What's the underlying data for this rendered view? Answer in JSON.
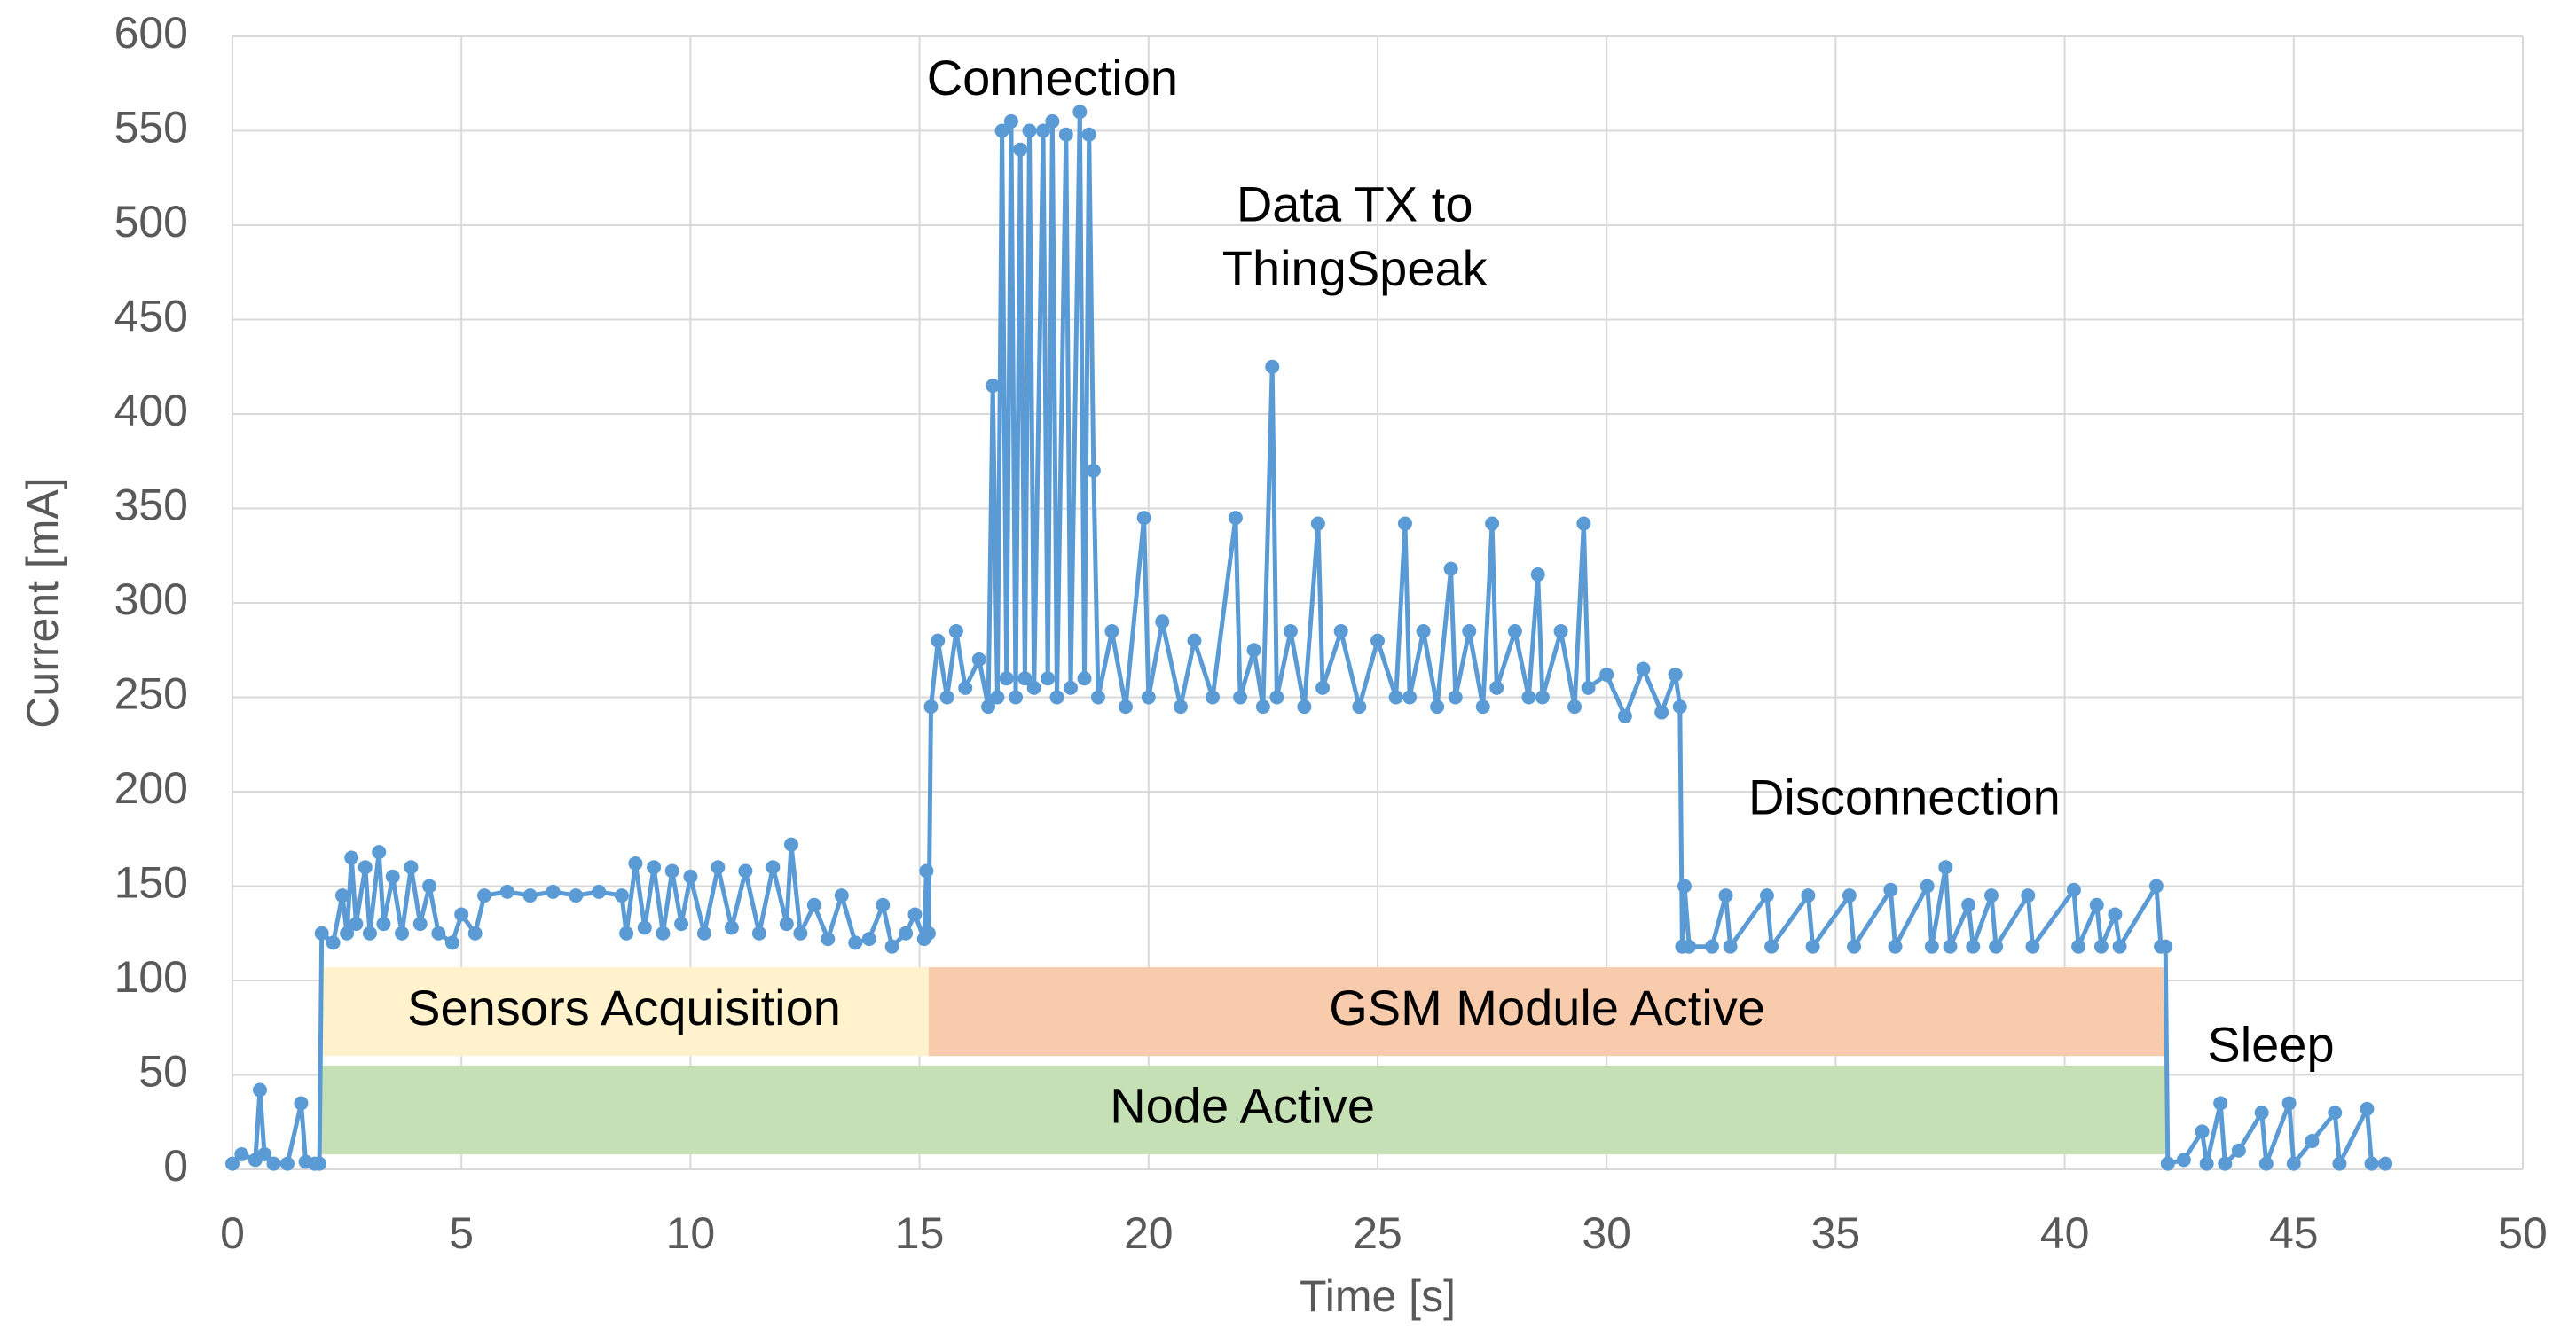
{
  "chart_data": {
    "type": "line",
    "xlabel": "Time [s]",
    "ylabel": "Current [mA]",
    "xlim": [
      0,
      50
    ],
    "xticks": [
      0,
      5,
      10,
      15,
      20,
      25,
      30,
      35,
      40,
      45,
      50
    ],
    "ylim": [
      0,
      600
    ],
    "yticks": [
      0,
      50,
      100,
      150,
      200,
      250,
      300,
      350,
      400,
      450,
      500,
      550,
      600
    ],
    "grid": true,
    "color": "#5b9bd5",
    "x": [
      0,
      0.2,
      0.5,
      0.6,
      0.7,
      0.9,
      1.2,
      1.5,
      1.6,
      1.8,
      1.9,
      1.95,
      2.2,
      2.4,
      2.5,
      2.6,
      2.7,
      2.9,
      3.0,
      3.2,
      3.3,
      3.5,
      3.7,
      3.9,
      4.1,
      4.3,
      4.5,
      4.8,
      5.0,
      5.3,
      5.5,
      6.0,
      6.5,
      7.0,
      7.5,
      8.0,
      8.5,
      8.6,
      8.8,
      9.0,
      9.2,
      9.4,
      9.6,
      9.8,
      10.0,
      10.3,
      10.6,
      10.9,
      11.2,
      11.5,
      11.8,
      12.1,
      12.2,
      12.4,
      12.7,
      13.0,
      13.3,
      13.6,
      13.9,
      14.2,
      14.4,
      14.7,
      14.9,
      15.1,
      15.15,
      15.2,
      15.25,
      15.4,
      15.6,
      15.8,
      16.0,
      16.3,
      16.5,
      16.6,
      16.7,
      16.8,
      16.9,
      17.0,
      17.1,
      17.2,
      17.3,
      17.4,
      17.5,
      17.7,
      17.8,
      17.9,
      18.0,
      18.2,
      18.3,
      18.5,
      18.6,
      18.7,
      18.8,
      18.9,
      19.2,
      19.5,
      19.9,
      20.0,
      20.3,
      20.7,
      21.0,
      21.4,
      21.9,
      22.0,
      22.3,
      22.5,
      22.7,
      22.8,
      23.1,
      23.4,
      23.7,
      23.8,
      24.2,
      24.6,
      25.0,
      25.4,
      25.6,
      25.7,
      26.0,
      26.3,
      26.6,
      26.7,
      27.0,
      27.3,
      27.5,
      27.6,
      28.0,
      28.3,
      28.5,
      28.6,
      29.0,
      29.3,
      29.5,
      29.6,
      30.0,
      30.4,
      30.8,
      31.2,
      31.5,
      31.6,
      31.65,
      31.7,
      31.8,
      32.3,
      32.6,
      32.7,
      33.5,
      33.6,
      34.4,
      34.5,
      35.3,
      35.4,
      36.2,
      36.3,
      37.0,
      37.1,
      37.4,
      37.5,
      37.9,
      38.0,
      38.4,
      38.5,
      39.2,
      39.3,
      40.2,
      40.3,
      40.7,
      40.8,
      41.1,
      41.2,
      42.0,
      42.1,
      42.2,
      42.25,
      42.6,
      43.0,
      43.1,
      43.4,
      43.5,
      43.8,
      44.3,
      44.4,
      44.9,
      45.0,
      45.4,
      45.9,
      46.0,
      46.6,
      46.7,
      47.0
    ],
    "values": [
      3,
      8,
      5,
      42,
      8,
      3,
      3,
      35,
      4,
      3,
      3,
      125,
      120,
      145,
      125,
      165,
      130,
      160,
      125,
      168,
      130,
      155,
      125,
      160,
      130,
      150,
      125,
      120,
      135,
      125,
      145,
      147,
      145,
      147,
      145,
      147,
      145,
      125,
      162,
      128,
      160,
      125,
      158,
      130,
      155,
      125,
      160,
      128,
      158,
      125,
      160,
      130,
      172,
      125,
      140,
      122,
      145,
      120,
      122,
      140,
      118,
      125,
      135,
      122,
      158,
      125,
      245,
      280,
      250,
      285,
      255,
      270,
      245,
      415,
      250,
      550,
      260,
      555,
      250,
      540,
      260,
      550,
      255,
      550,
      260,
      555,
      250,
      548,
      255,
      560,
      260,
      548,
      370,
      250,
      285,
      245,
      345,
      250,
      290,
      245,
      280,
      250,
      345,
      250,
      275,
      245,
      425,
      250,
      285,
      245,
      342,
      255,
      285,
      245,
      280,
      250,
      342,
      250,
      285,
      245,
      318,
      250,
      285,
      245,
      342,
      255,
      285,
      250,
      315,
      250,
      285,
      245,
      342,
      255,
      262,
      240,
      265,
      242,
      262,
      245,
      118,
      150,
      118,
      118,
      145,
      118,
      145,
      118,
      145,
      118,
      145,
      118,
      148,
      118,
      150,
      118,
      160,
      118,
      140,
      118,
      145,
      118,
      145,
      118,
      148,
      118,
      140,
      118,
      135,
      118,
      150,
      118,
      118,
      3,
      5,
      20,
      3,
      35,
      3,
      10,
      30,
      3,
      35,
      3,
      15,
      30,
      3,
      32,
      3,
      3
    ],
    "annotations": [
      "Connection",
      "Data TX to",
      "ThingSpeak",
      "Disconnection",
      "Sleep"
    ],
    "spans": [
      {
        "label": "Sensors Acquisition",
        "x": [
          1.9,
          15.2
        ],
        "color": "#fff2cc"
      },
      {
        "label": "GSM Module Active",
        "x": [
          15.2,
          42.2
        ],
        "color": "#f8cbad"
      },
      {
        "label": "Node Active",
        "x": [
          1.9,
          42.2
        ],
        "color": "#c5e0b4"
      }
    ]
  }
}
